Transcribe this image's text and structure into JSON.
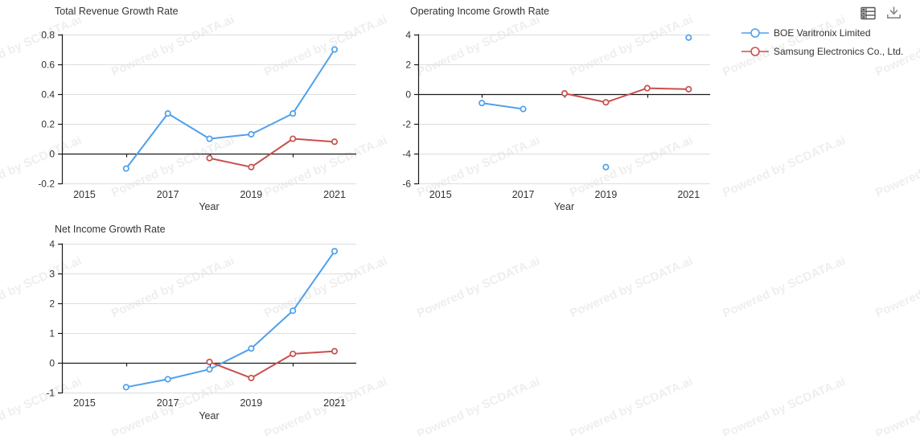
{
  "watermark": {
    "text": "Powered by SCDATA.ai"
  },
  "toolbar": {
    "icons": [
      {
        "name": "data-table-view-icon"
      },
      {
        "name": "download-icon"
      }
    ]
  },
  "legend": [
    {
      "name": "BOE Varitronix Limited",
      "color": "#4FA0EC"
    },
    {
      "name": "Samsung Electronics Co., Ltd.",
      "color": "#C9504C"
    }
  ],
  "colors": {
    "blue_series": "#4FA0EC",
    "red_series": "#C9504C",
    "gridline": "#DDDDDD",
    "axis": "#1A1A1A",
    "text": "#333333",
    "icon_gray": "#666666"
  },
  "chart_data": [
    {
      "type": "line",
      "title": "Total Revenue Growth Rate",
      "xlabel": "Year",
      "x_tick_labels": [
        "2015",
        "2017",
        "2019",
        "2021"
      ],
      "x_tick_years": [
        2015,
        2017,
        2019,
        2021
      ],
      "x_minor_tick_years": [
        2016,
        2018,
        2020
      ],
      "y_tick_labels": [
        "0.8",
        "0.6",
        "0.4",
        "0.2",
        "0",
        "-0.2"
      ],
      "y_ticks": [
        0.8,
        0.6,
        0.4,
        0.2,
        0,
        -0.2
      ],
      "ylim": [
        -0.2,
        0.8
      ],
      "xlim": [
        2014.46,
        2021.52
      ],
      "grid": true,
      "legend_position": "outside-top-right",
      "series": [
        {
          "name": "BOE Varitronix Limited",
          "color": "#4FA0EC",
          "x": [
            2016,
            2017,
            2018,
            2019,
            2020,
            2021
          ],
          "y": [
            -0.1,
            0.27,
            0.1,
            0.13,
            0.27,
            0.7
          ]
        },
        {
          "name": "Samsung Electronics Co., Ltd.",
          "color": "#C9504C",
          "x": [
            2018,
            2019,
            2020,
            2021
          ],
          "y": [
            -0.03,
            -0.09,
            0.1,
            0.08
          ]
        }
      ]
    },
    {
      "type": "line",
      "title": "Operating Income Growth Rate",
      "xlabel": "Year",
      "x_tick_labels": [
        "2015",
        "2017",
        "2019",
        "2021"
      ],
      "x_tick_years": [
        2015,
        2017,
        2019,
        2021
      ],
      "x_minor_tick_years": [
        2016,
        2018,
        2020
      ],
      "y_tick_labels": [
        "4",
        "2",
        "0",
        "-2",
        "-4",
        "-6"
      ],
      "y_ticks": [
        4,
        2,
        0,
        -2,
        -4,
        -6
      ],
      "ylim": [
        -6,
        4
      ],
      "xlim": [
        2014.46,
        2021.52
      ],
      "grid": true,
      "series": [
        {
          "name": "BOE Varitronix Limited",
          "color": "#4FA0EC",
          "x": [
            2016,
            2017,
            2019,
            2021
          ],
          "y": [
            -0.6,
            -1.0,
            -4.9,
            3.8
          ]
        },
        {
          "name": "Samsung Electronics Co., Ltd.",
          "color": "#C9504C",
          "x": [
            2018,
            2019,
            2020,
            2021
          ],
          "y": [
            0.05,
            -0.55,
            0.4,
            0.33
          ]
        }
      ]
    },
    {
      "type": "line",
      "title": "Net Income Growth Rate",
      "xlabel": "Year",
      "x_tick_labels": [
        "2015",
        "2017",
        "2019",
        "2021"
      ],
      "x_tick_years": [
        2015,
        2017,
        2019,
        2021
      ],
      "x_minor_tick_years": [
        2016,
        2018,
        2020
      ],
      "y_tick_labels": [
        "4",
        "3",
        "2",
        "1",
        "0",
        "-1"
      ],
      "y_ticks": [
        4,
        3,
        2,
        1,
        0,
        -1
      ],
      "ylim": [
        -1,
        4
      ],
      "xlim": [
        2014.46,
        2021.52
      ],
      "grid": true,
      "series": [
        {
          "name": "BOE Varitronix Limited",
          "color": "#4FA0EC",
          "x": [
            2016,
            2017,
            2018,
            2019,
            2020,
            2021
          ],
          "y": [
            -0.82,
            -0.55,
            -0.22,
            0.48,
            1.75,
            3.75
          ]
        },
        {
          "name": "Samsung Electronics Co., Ltd.",
          "color": "#C9504C",
          "x": [
            2018,
            2019,
            2020,
            2021
          ],
          "y": [
            0.03,
            -0.51,
            0.3,
            0.39
          ]
        }
      ]
    }
  ]
}
